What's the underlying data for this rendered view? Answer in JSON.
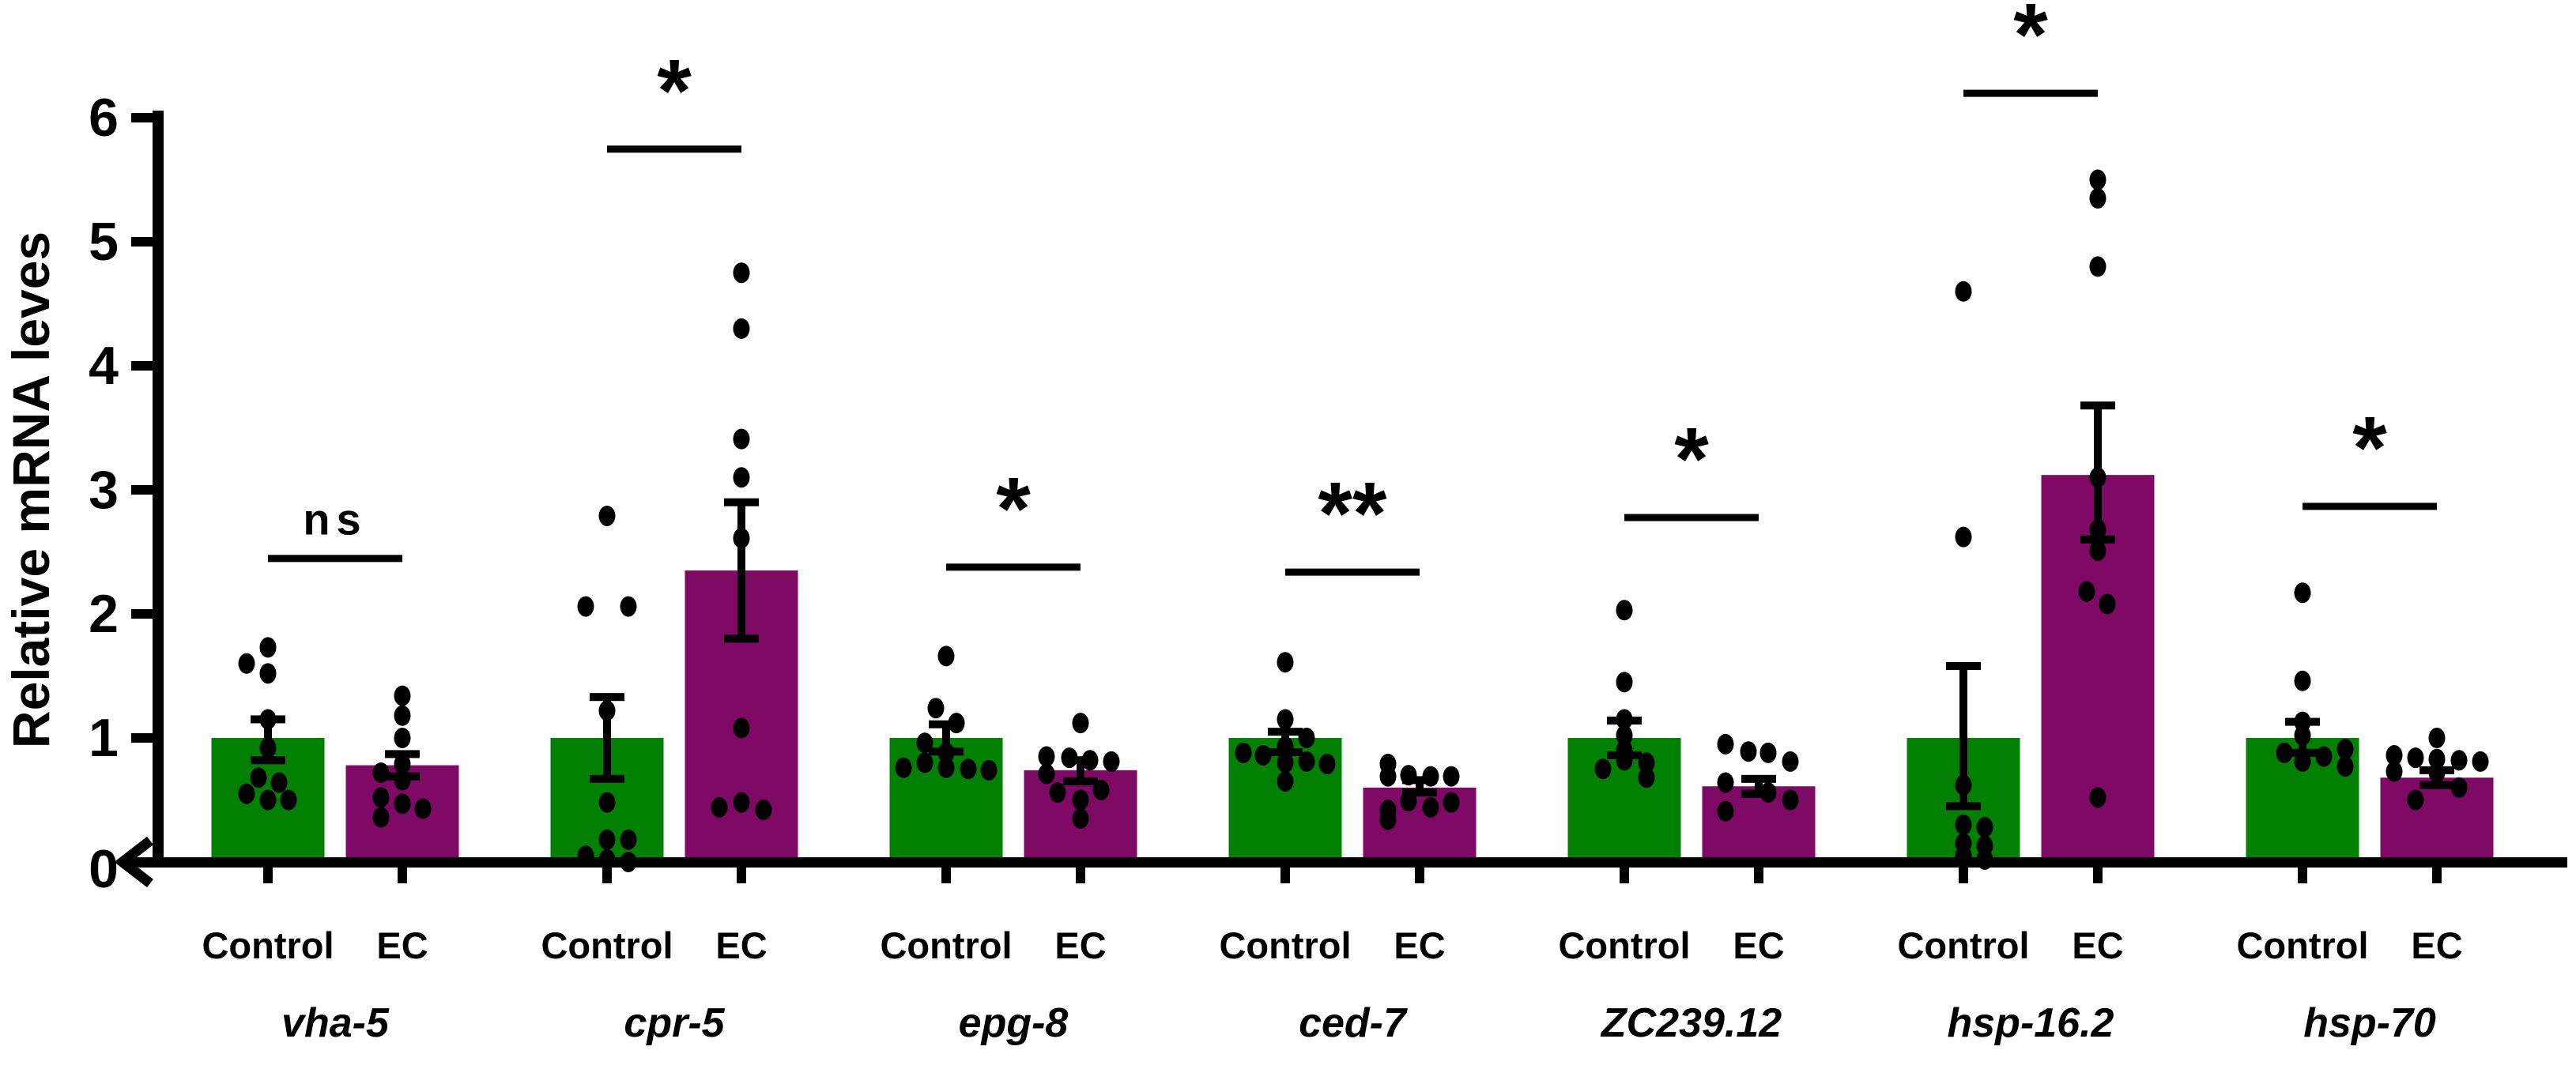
{
  "figure": {
    "background": "#ffffff",
    "axis_color": "#000000",
    "origin_marker": "<"
  },
  "chart_data": {
    "type": "bar",
    "title": "",
    "xlabel": "",
    "ylabel": "Relative mRNA leves",
    "ylim": [
      0,
      6
    ],
    "yticks": [
      0,
      1,
      2,
      3,
      4,
      5,
      6
    ],
    "grid": false,
    "legend_position": "none",
    "series_names": [
      "Control",
      "EC"
    ],
    "colors": {
      "control": "#018001",
      "ec": "#7E0A66",
      "points": "#000000",
      "error": "#000000"
    },
    "groups": [
      {
        "gene": "vha-5",
        "significance": {
          "label": "ns",
          "line_y": 2.45
        },
        "control": {
          "label": "Control",
          "mean": 1.0,
          "err_lo": 0.82,
          "err_hi": 1.15,
          "points": [
            [
              1.73,
              0
            ],
            [
              1.6,
              -27
            ],
            [
              1.52,
              0
            ],
            [
              1.15,
              0
            ],
            [
              0.92,
              0
            ],
            [
              0.68,
              -12
            ],
            [
              0.64,
              14
            ],
            [
              0.55,
              -27
            ],
            [
              0.5,
              0
            ],
            [
              0.5,
              26
            ]
          ]
        },
        "ec": {
          "label": "EC",
          "mean": 0.78,
          "err_lo": 0.69,
          "err_hi": 0.87,
          "points": [
            [
              1.34,
              0
            ],
            [
              1.18,
              0
            ],
            [
              1.0,
              0
            ],
            [
              0.79,
              0
            ],
            [
              0.72,
              -27
            ],
            [
              0.66,
              0
            ],
            [
              0.52,
              -27
            ],
            [
              0.47,
              0
            ],
            [
              0.43,
              26
            ],
            [
              0.36,
              -27
            ]
          ]
        }
      },
      {
        "gene": "cpr-5",
        "significance": {
          "label": "*",
          "line_y": 5.75
        },
        "control": {
          "label": "Control",
          "mean": 1.0,
          "err_lo": 0.67,
          "err_hi": 1.33,
          "points": [
            [
              2.79,
              0
            ],
            [
              2.06,
              -27
            ],
            [
              2.06,
              27
            ],
            [
              1.22,
              0
            ],
            [
              0.48,
              0
            ],
            [
              0.18,
              0
            ],
            [
              0.18,
              27
            ],
            [
              0.05,
              -27
            ],
            [
              0.02,
              0
            ],
            [
              0.0,
              27
            ]
          ]
        },
        "ec": {
          "label": "EC",
          "mean": 2.35,
          "err_lo": 1.8,
          "err_hi": 2.9,
          "points": [
            [
              4.75,
              0
            ],
            [
              4.3,
              0
            ],
            [
              3.41,
              0
            ],
            [
              3.1,
              0
            ],
            [
              2.61,
              0
            ],
            [
              1.08,
              0
            ],
            [
              0.48,
              0
            ],
            [
              0.44,
              -28
            ],
            [
              0.42,
              28
            ]
          ]
        }
      },
      {
        "gene": "epg-8",
        "significance": {
          "label": "*",
          "line_y": 2.38
        },
        "control": {
          "label": "Control",
          "mean": 1.0,
          "err_lo": 0.89,
          "err_hi": 1.11,
          "points": [
            [
              1.66,
              0
            ],
            [
              1.24,
              -13
            ],
            [
              1.12,
              13
            ],
            [
              0.96,
              -27
            ],
            [
              0.88,
              0
            ],
            [
              0.8,
              -27
            ],
            [
              0.76,
              -54
            ],
            [
              0.76,
              0
            ],
            [
              0.75,
              28
            ],
            [
              0.74,
              54
            ]
          ]
        },
        "ec": {
          "label": "EC",
          "mean": 0.74,
          "err_lo": 0.65,
          "err_hi": 0.82,
          "points": [
            [
              1.12,
              0
            ],
            [
              0.85,
              -43
            ],
            [
              0.84,
              -14
            ],
            [
              0.82,
              12
            ],
            [
              0.81,
              39
            ],
            [
              0.71,
              -43
            ],
            [
              0.58,
              26
            ],
            [
              0.56,
              -29
            ],
            [
              0.5,
              0
            ],
            [
              0.35,
              0
            ]
          ]
        }
      },
      {
        "gene": "ced-7",
        "significance": {
          "label": "**",
          "line_y": 2.34
        },
        "control": {
          "label": "Control",
          "mean": 1.0,
          "err_lo": 0.885,
          "err_hi": 1.05,
          "points": [
            [
              1.61,
              0
            ],
            [
              1.15,
              0
            ],
            [
              1.0,
              27
            ],
            [
              0.93,
              0
            ],
            [
              0.88,
              -53
            ],
            [
              0.86,
              -28
            ],
            [
              0.81,
              27
            ],
            [
              0.8,
              0
            ],
            [
              0.79,
              53
            ],
            [
              0.65,
              0
            ]
          ]
        },
        "ec": {
          "label": "EC",
          "mean": 0.6,
          "err_lo": 0.56,
          "err_hi": 0.66,
          "points": [
            [
              0.79,
              -40
            ],
            [
              0.7,
              -14
            ],
            [
              0.69,
              -40
            ],
            [
              0.69,
              14
            ],
            [
              0.69,
              40
            ],
            [
              0.49,
              -14
            ],
            [
              0.48,
              40
            ],
            [
              0.44,
              14
            ],
            [
              0.42,
              -40
            ],
            [
              0.34,
              -40
            ]
          ]
        }
      },
      {
        "gene": "ZC239.12",
        "significance": {
          "label": "*",
          "line_y": 2.78
        },
        "control": {
          "label": "Control",
          "mean": 1.0,
          "err_lo": 0.86,
          "err_hi": 1.14,
          "points": [
            [
              2.03,
              0
            ],
            [
              1.45,
              0
            ],
            [
              1.15,
              0
            ],
            [
              1.02,
              0
            ],
            [
              0.9,
              0
            ],
            [
              0.82,
              0
            ],
            [
              0.8,
              28
            ],
            [
              0.75,
              -27
            ],
            [
              0.68,
              28
            ]
          ]
        },
        "ec": {
          "label": "EC",
          "mean": 0.61,
          "err_lo": 0.55,
          "err_hi": 0.67,
          "points": [
            [
              0.95,
              -42
            ],
            [
              0.89,
              -13
            ],
            [
              0.88,
              12
            ],
            [
              0.81,
              40
            ],
            [
              0.64,
              -42
            ],
            [
              0.56,
              12
            ],
            [
              0.5,
              40
            ],
            [
              0.41,
              -42
            ]
          ]
        }
      },
      {
        "gene": "hsp-16.2",
        "significance": {
          "label": "*",
          "line_y": 6.2
        },
        "control": {
          "label": "Control",
          "mean": 1.0,
          "err_lo": 0.45,
          "err_hi": 1.58,
          "points": [
            [
              4.6,
              0
            ],
            [
              2.62,
              0
            ],
            [
              0.62,
              0
            ],
            [
              0.3,
              0
            ],
            [
              0.28,
              27
            ],
            [
              0.15,
              0
            ],
            [
              0.13,
              27
            ],
            [
              0.05,
              0
            ],
            [
              0.02,
              27
            ]
          ]
        },
        "ec": {
          "label": "EC",
          "mean": 3.12,
          "err_lo": 2.6,
          "err_hi": 3.68,
          "points": [
            [
              5.5,
              0
            ],
            [
              5.35,
              0
            ],
            [
              4.8,
              0
            ],
            [
              3.1,
              0
            ],
            [
              2.68,
              0
            ],
            [
              2.51,
              0
            ],
            [
              2.18,
              -14
            ],
            [
              2.08,
              12
            ],
            [
              0.52,
              0
            ]
          ]
        }
      },
      {
        "gene": "hsp-70",
        "significance": {
          "label": "*",
          "line_y": 2.87
        },
        "control": {
          "label": "Control",
          "mean": 1.0,
          "err_lo": 0.88,
          "err_hi": 1.13,
          "points": [
            [
              2.17,
              0
            ],
            [
              1.46,
              0
            ],
            [
              1.13,
              0
            ],
            [
              1.02,
              0
            ],
            [
              0.91,
              54
            ],
            [
              0.88,
              -23
            ],
            [
              0.85,
              27
            ],
            [
              0.81,
              0
            ],
            [
              0.77,
              54
            ]
          ]
        },
        "ec": {
          "label": "EC",
          "mean": 0.68,
          "err_lo": 0.62,
          "err_hi": 0.74,
          "points": [
            [
              1.0,
              0
            ],
            [
              0.86,
              -54
            ],
            [
              0.84,
              -27
            ],
            [
              0.83,
              0
            ],
            [
              0.82,
              28
            ],
            [
              0.81,
              55
            ],
            [
              0.73,
              -54
            ],
            [
              0.72,
              0
            ],
            [
              0.6,
              28
            ],
            [
              0.5,
              -27
            ]
          ]
        }
      }
    ]
  }
}
